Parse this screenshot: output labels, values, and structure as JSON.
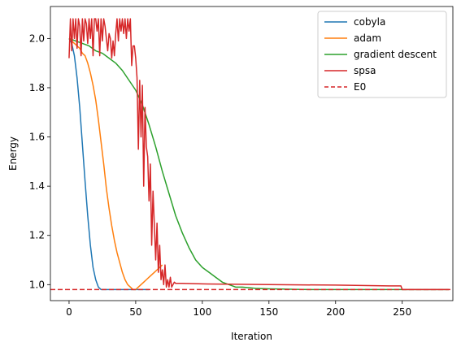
{
  "chart_data": {
    "type": "line",
    "title": "",
    "xlabel": "Iteration",
    "ylabel": "Energy",
    "xlim": [
      -14,
      288
    ],
    "ylim": [
      0.935,
      2.13
    ],
    "xticks": [
      0,
      50,
      100,
      150,
      200,
      250
    ],
    "yticks": [
      1.0,
      1.2,
      1.4,
      1.6,
      1.8,
      2.0
    ],
    "ytick_labels": [
      "1.0",
      "1.2",
      "1.4",
      "1.6",
      "1.8",
      "2.0"
    ],
    "grid": false,
    "legend_position": "top-right",
    "series": [
      {
        "name": "cobyla",
        "color": "#1f77b4",
        "dash": "solid",
        "x": [
          0,
          2,
          4,
          6,
          8,
          10,
          12,
          14,
          16,
          18,
          20,
          22,
          24,
          26,
          30,
          40,
          60
        ],
        "y": [
          2.0,
          1.98,
          1.93,
          1.84,
          1.72,
          1.57,
          1.42,
          1.28,
          1.16,
          1.07,
          1.02,
          0.99,
          0.98,
          0.98,
          0.98,
          0.98,
          0.98
        ]
      },
      {
        "name": "adam",
        "color": "#ff7f0e",
        "dash": "solid",
        "x": [
          0,
          2,
          4,
          6,
          8,
          10,
          12,
          14,
          16,
          18,
          20,
          22,
          24,
          26,
          28,
          30,
          32,
          34,
          36,
          38,
          40,
          42,
          44,
          46,
          48,
          50,
          52,
          54,
          56,
          58,
          60,
          62,
          64,
          66,
          68,
          70
        ],
        "y": [
          2.0,
          1.99,
          1.98,
          1.97,
          1.96,
          1.94,
          1.93,
          1.9,
          1.86,
          1.81,
          1.75,
          1.67,
          1.58,
          1.49,
          1.39,
          1.31,
          1.24,
          1.18,
          1.13,
          1.09,
          1.05,
          1.02,
          1.0,
          0.99,
          0.98,
          0.98,
          0.99,
          1.0,
          1.01,
          1.02,
          1.03,
          1.04,
          1.05,
          1.06,
          1.07,
          1.08
        ]
      },
      {
        "name": "gradient descent",
        "color": "#2ca02c",
        "dash": "solid",
        "x": [
          0,
          5,
          10,
          15,
          20,
          25,
          30,
          35,
          40,
          45,
          50,
          55,
          60,
          65,
          70,
          75,
          80,
          85,
          90,
          95,
          100,
          105,
          110,
          115,
          120,
          125,
          130,
          140,
          150,
          160,
          170,
          180,
          200,
          230,
          250,
          285
        ],
        "y": [
          2.0,
          1.99,
          1.98,
          1.97,
          1.95,
          1.94,
          1.92,
          1.9,
          1.87,
          1.83,
          1.79,
          1.73,
          1.65,
          1.56,
          1.46,
          1.37,
          1.28,
          1.21,
          1.15,
          1.1,
          1.07,
          1.05,
          1.03,
          1.01,
          1.0,
          0.99,
          0.99,
          0.985,
          0.983,
          0.982,
          0.981,
          0.98,
          0.98,
          0.98,
          0.98,
          0.98
        ]
      },
      {
        "name": "spsa",
        "color": "#d62728",
        "dash": "solid",
        "x": [
          0,
          1,
          2,
          3,
          4,
          5,
          6,
          7,
          8,
          9,
          10,
          11,
          12,
          13,
          14,
          15,
          16,
          17,
          18,
          19,
          20,
          21,
          22,
          23,
          24,
          25,
          26,
          27,
          28,
          29,
          30,
          31,
          32,
          33,
          34,
          35,
          36,
          37,
          38,
          39,
          40,
          41,
          42,
          43,
          44,
          45,
          46,
          47,
          48,
          49,
          50,
          51,
          52,
          53,
          54,
          55,
          56,
          57,
          58,
          59,
          60,
          61,
          62,
          63,
          64,
          65,
          66,
          67,
          68,
          69,
          70,
          71,
          72,
          73,
          74,
          75,
          76,
          77,
          78,
          79,
          80,
          85,
          100,
          150,
          200,
          240,
          248,
          249,
          250,
          255,
          285
        ],
        "y": [
          1.92,
          2.08,
          1.95,
          2.08,
          2.0,
          2.08,
          1.96,
          2.08,
          2.05,
          1.93,
          2.08,
          1.99,
          2.08,
          2.06,
          1.98,
          2.08,
          2.0,
          2.08,
          1.93,
          2.08,
          2.08,
          2.03,
          2.08,
          1.93,
          2.08,
          1.99,
          2.08,
          2.05,
          2.0,
          1.95,
          2.02,
          2.0,
          1.92,
          1.99,
          1.93,
          2.02,
          2.08,
          1.99,
          2.08,
          2.03,
          2.08,
          2.02,
          2.08,
          2.0,
          2.08,
          2.03,
          2.08,
          1.89,
          1.97,
          1.97,
          1.92,
          1.84,
          1.55,
          1.83,
          1.6,
          1.81,
          1.4,
          1.72,
          1.56,
          1.52,
          1.34,
          1.49,
          1.16,
          1.38,
          1.24,
          1.1,
          1.25,
          1.05,
          1.16,
          1.02,
          1.06,
          1.0,
          1.08,
          0.99,
          1.02,
          0.99,
          1.03,
          0.99,
          1.0,
          1.01,
          1.005,
          1.005,
          1.003,
          1.0,
          0.998,
          0.995,
          0.995,
          0.995,
          0.98,
          0.98,
          0.98
        ]
      },
      {
        "name": "E0",
        "color": "#d62728",
        "dash": "dashed",
        "horizontal": true,
        "y": 0.98
      }
    ]
  }
}
